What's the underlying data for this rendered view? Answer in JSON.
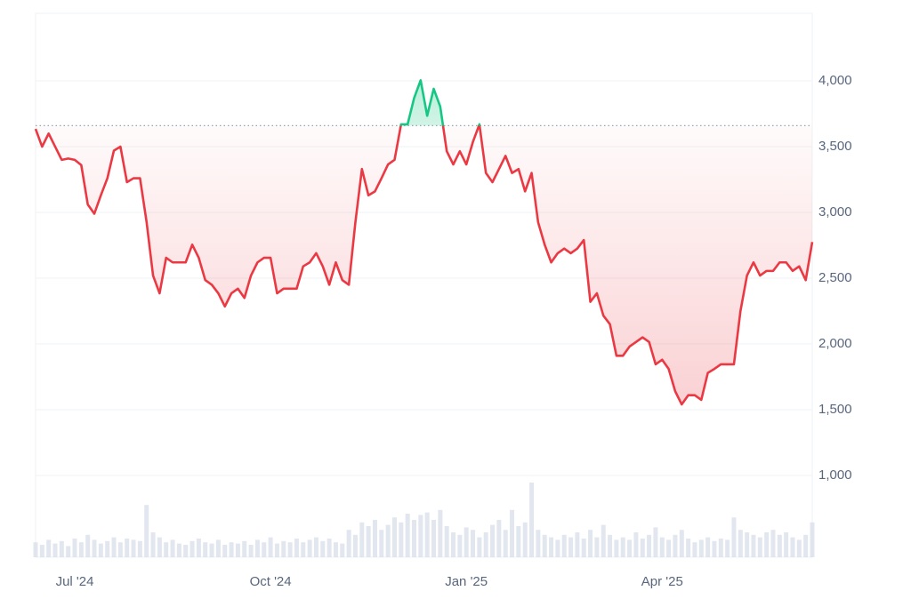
{
  "chart_data": {
    "type": "line",
    "categories": [
      null,
      null,
      null,
      null,
      null,
      null,
      "Jul '24",
      null,
      null,
      null,
      null,
      null,
      null,
      null,
      null,
      null,
      null,
      null,
      null,
      null,
      null,
      null,
      null,
      null,
      null,
      null,
      null,
      null,
      null,
      null,
      null,
      null,
      null,
      null,
      null,
      null,
      "Oct '24",
      null,
      null,
      null,
      null,
      null,
      null,
      null,
      null,
      null,
      null,
      null,
      null,
      null,
      null,
      null,
      null,
      null,
      null,
      null,
      null,
      null,
      null,
      null,
      null,
      null,
      null,
      null,
      null,
      null,
      "Jan '25",
      null,
      null,
      null,
      null,
      null,
      null,
      null,
      null,
      null,
      null,
      null,
      null,
      null,
      null,
      null,
      null,
      null,
      null,
      null,
      null,
      null,
      null,
      null,
      null,
      null,
      null,
      null,
      null,
      null,
      "Apr '25",
      null,
      null,
      null,
      null,
      null,
      null,
      null,
      null,
      null,
      null,
      null,
      null,
      null,
      null,
      null,
      null,
      null,
      null,
      null,
      null,
      null,
      null,
      null
    ],
    "values": [
      3635,
      3500,
      3600,
      3500,
      3400,
      3410,
      3400,
      3360,
      3060,
      2990,
      3130,
      3260,
      3470,
      3500,
      3230,
      3260,
      3260,
      2930,
      2520,
      2385,
      2655,
      2620,
      2620,
      2620,
      2755,
      2655,
      2485,
      2450,
      2385,
      2285,
      2385,
      2420,
      2350,
      2520,
      2620,
      2655,
      2655,
      2385,
      2420,
      2420,
      2420,
      2590,
      2620,
      2690,
      2590,
      2450,
      2620,
      2485,
      2450,
      2925,
      3330,
      3130,
      3160,
      3260,
      3365,
      3400,
      3670,
      3670,
      3870,
      4005,
      3735,
      3940,
      3805,
      3465,
      3365,
      3465,
      3365,
      3535,
      3670,
      3300,
      3230,
      3330,
      3430,
      3300,
      3330,
      3160,
      3300,
      2925,
      2755,
      2620,
      2690,
      2725,
      2690,
      2725,
      2790,
      2320,
      2385,
      2215,
      2150,
      1910,
      1910,
      1980,
      2015,
      2050,
      2015,
      1845,
      1880,
      1810,
      1640,
      1540,
      1610,
      1610,
      1575,
      1780,
      1810,
      1845,
      1845,
      1845,
      2250,
      2520,
      2620,
      2520,
      2555,
      2555,
      2620,
      2620,
      2555,
      2590,
      2485,
      2775
    ],
    "volume": [
      12,
      10,
      14,
      11,
      13,
      9,
      15,
      12,
      18,
      14,
      11,
      13,
      16,
      12,
      15,
      14,
      13,
      42,
      20,
      16,
      12,
      14,
      11,
      10,
      13,
      15,
      12,
      11,
      14,
      10,
      12,
      11,
      13,
      10,
      14,
      12,
      16,
      11,
      13,
      12,
      15,
      12,
      14,
      16,
      13,
      15,
      12,
      11,
      22,
      18,
      28,
      25,
      30,
      22,
      26,
      32,
      28,
      35,
      30,
      34,
      36,
      30,
      38,
      25,
      20,
      18,
      24,
      22,
      16,
      20,
      26,
      30,
      22,
      38,
      25,
      28,
      60,
      22,
      18,
      16,
      14,
      18,
      16,
      20,
      15,
      22,
      16,
      26,
      18,
      14,
      16,
      14,
      20,
      15,
      18,
      24,
      16,
      14,
      18,
      22,
      15,
      12,
      14,
      16,
      13,
      15,
      14,
      32,
      22,
      20,
      18,
      16,
      20,
      22,
      18,
      20,
      16,
      14,
      18,
      28
    ],
    "baseline": 3660,
    "up_color": "#16c784",
    "down_color": "#ea3943",
    "volume_color": "#cfd6e4",
    "ylim": [
      378,
      4514
    ],
    "yticks": [
      {
        "value": 1000,
        "label": "1,000"
      },
      {
        "value": 1500,
        "label": "1,500"
      },
      {
        "value": 2000,
        "label": "2,000"
      },
      {
        "value": 2500,
        "label": "2,500"
      },
      {
        "value": 3000,
        "label": "3,000"
      },
      {
        "value": 3500,
        "label": "3,500"
      },
      {
        "value": 4000,
        "label": "4,000"
      }
    ],
    "grid": true
  }
}
